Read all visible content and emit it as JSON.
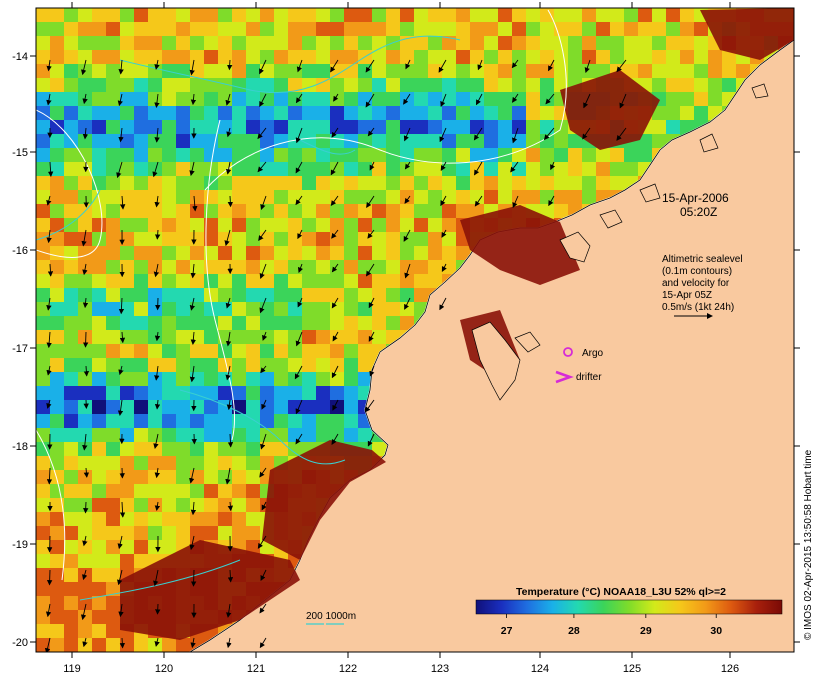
{
  "map": {
    "xticks": [
      "119",
      "120",
      "121",
      "122",
      "123",
      "124",
      "125",
      "126"
    ],
    "yticks": [
      "-14",
      "-15",
      "-16",
      "-17",
      "-18",
      "-19",
      "-20"
    ]
  },
  "annotation": {
    "date": "15-Apr-2006",
    "time": "05:20Z",
    "legend_lines": [
      "Altimetric sealevel",
      "(0.1m contours)",
      "and velocity for",
      "15-Apr 05Z",
      "0.5m/s (1kt 24h)"
    ],
    "argo_label": "Argo",
    "drifter_label": "drifter",
    "depth_label": "200  1000m"
  },
  "colorbar": {
    "title": "Temperature (°C) NOAA18_L3U 52% ql>=2",
    "ticks": [
      "27",
      "28",
      "29",
      "30"
    ],
    "colors": [
      "#10107a",
      "#1a2fbf",
      "#1f6ee0",
      "#1ab0e8",
      "#23d9b0",
      "#3bd45a",
      "#7fdc2a",
      "#d2ea1a",
      "#f5c81a",
      "#f29a18",
      "#dd5a10",
      "#a8200c",
      "#7a0a06"
    ]
  },
  "credit": "© IMOS 02-Apr-2015 13:50:58 Hobart time",
  "colors": {
    "land": "#f9c99f",
    "marker": "#d62bd6",
    "contour": "#ffffff",
    "bathy": "#3ad0d0"
  }
}
